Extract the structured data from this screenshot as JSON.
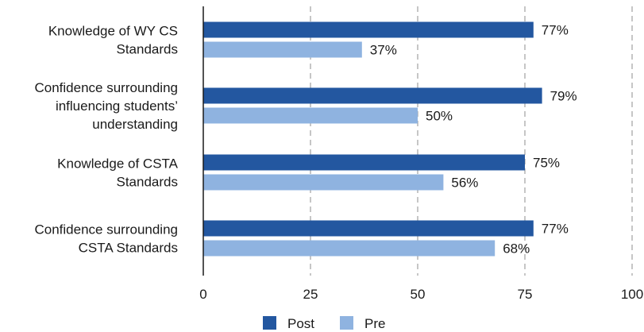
{
  "chart_data": {
    "type": "bar",
    "orientation": "horizontal",
    "categories": [
      [
        "Knowledge of WY CS",
        "Standards"
      ],
      [
        "Confidence surrounding",
        "influencing students’",
        "understanding"
      ],
      [
        "Knowledge of CSTA",
        "Standards"
      ],
      [
        "Confidence surrounding",
        "CSTA Standards"
      ]
    ],
    "series": [
      {
        "name": "Post",
        "color": "#2357a0",
        "values": [
          77,
          79,
          75,
          77
        ],
        "labels": [
          "77%",
          "79%",
          "75%",
          "77%"
        ]
      },
      {
        "name": "Pre",
        "color": "#8fb3e0",
        "values": [
          37,
          50,
          56,
          68
        ],
        "labels": [
          "37%",
          "50%",
          "56%",
          "68%"
        ]
      }
    ],
    "xlim": [
      0,
      100
    ],
    "xticks": [
      0,
      25,
      50,
      75,
      100
    ],
    "xtick_labels": [
      "0",
      "25",
      "50",
      "75",
      "100"
    ],
    "grid": "vertical-dashed",
    "legend": "bottom",
    "title": "",
    "xlabel": "",
    "ylabel": ""
  }
}
